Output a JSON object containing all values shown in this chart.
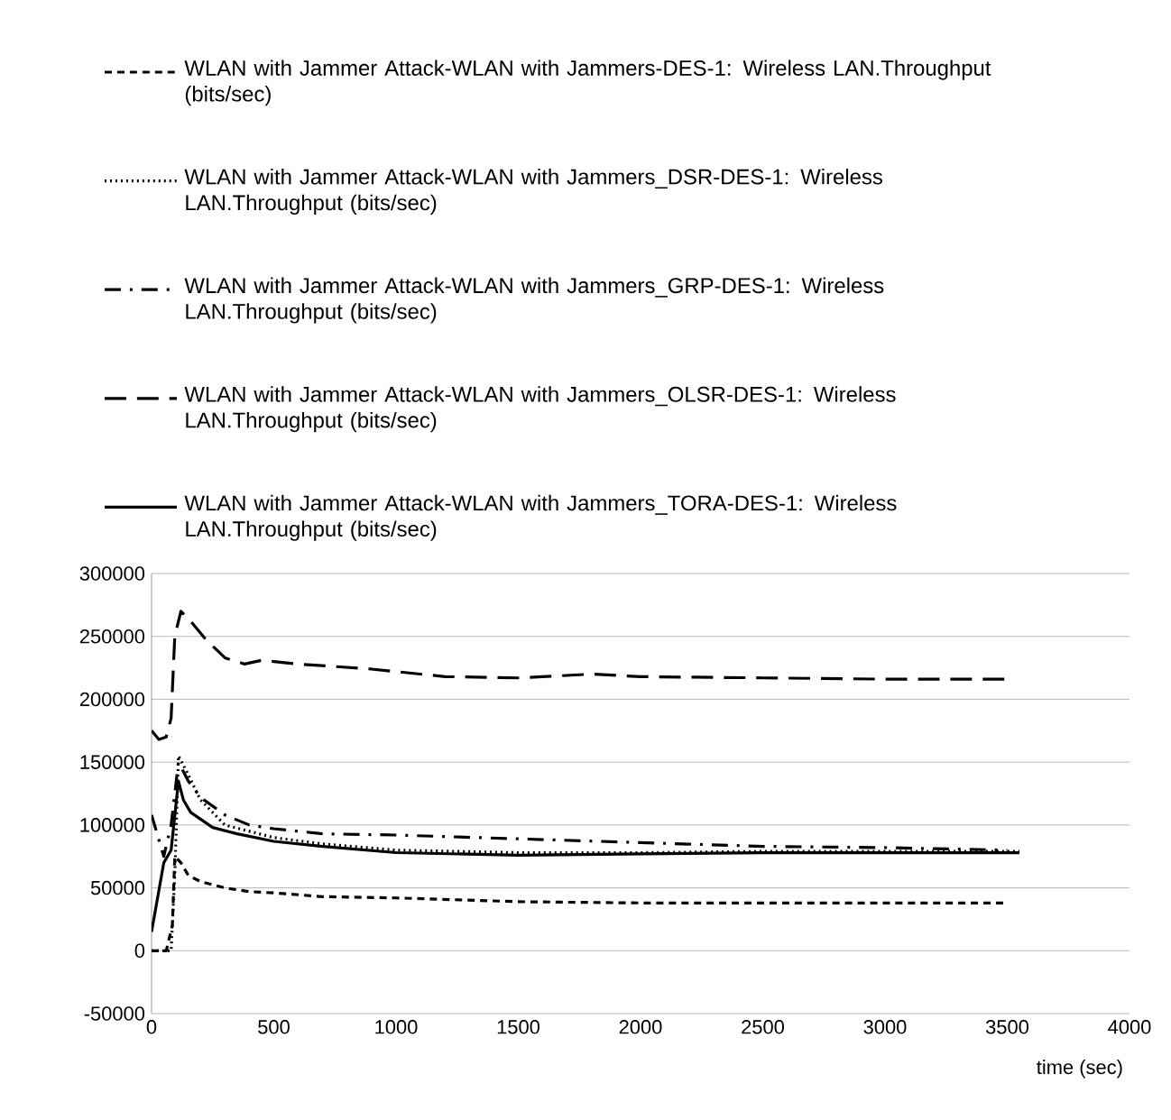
{
  "chart_data": {
    "type": "line",
    "xlabel": "time (sec)",
    "xlim": [
      0,
      4000
    ],
    "xticks": [
      0,
      500,
      1000,
      1500,
      2000,
      2500,
      3000,
      3500,
      4000
    ],
    "ylim": [
      -50000,
      300000
    ],
    "yticks": [
      -50000,
      0,
      50000,
      100000,
      150000,
      200000,
      250000,
      300000
    ],
    "grid": "y",
    "legend": "top",
    "series": [
      {
        "name": "WLAN with Jammer Attack-WLAN with Jammers-DES-1: Wireless LAN.Throughput (bits/sec)",
        "color": "#000000",
        "line_style": "dashed",
        "x": [
          0,
          60,
          85,
          95,
          120,
          150,
          200,
          300,
          400,
          500,
          700,
          1000,
          1500,
          2000,
          2500,
          3000,
          3500
        ],
        "values": [
          0,
          0,
          20000,
          75000,
          70000,
          60000,
          55000,
          50000,
          47000,
          46000,
          43000,
          42000,
          39000,
          38000,
          38000,
          38000,
          38000
        ]
      },
      {
        "name": "WLAN with Jammer Attack-WLAN with Jammers_DSR-DES-1: Wireless LAN.Throughput (bits/sec)",
        "color": "#000000",
        "line_style": "dotted",
        "x": [
          0,
          80,
          95,
          110,
          150,
          200,
          300,
          500,
          700,
          1000,
          1500,
          2000,
          2500,
          3000,
          3500,
          3550
        ],
        "values": [
          0,
          0,
          60000,
          155000,
          140000,
          120000,
          100000,
          90000,
          85000,
          80000,
          78000,
          78000,
          79000,
          79000,
          79000,
          79000
        ]
      },
      {
        "name": "WLAN with Jammer Attack-WLAN with Jammers_GRP-DES-1: Wireless LAN.Throughput (bits/sec)",
        "color": "#000000",
        "line_style": "dashdot",
        "x": [
          0,
          50,
          80,
          110,
          150,
          200,
          300,
          400,
          500,
          700,
          1000,
          1500,
          2000,
          2500,
          3000,
          3500
        ],
        "values": [
          108000,
          75000,
          100000,
          150000,
          135000,
          122000,
          108000,
          100000,
          97000,
          93000,
          92000,
          89000,
          86000,
          83000,
          82000,
          80000
        ]
      },
      {
        "name": "WLAN with Jammer Attack-WLAN with Jammers_OLSR-DES-1: Wireless LAN.Throughput (bits/sec)",
        "color": "#000000",
        "line_style": "longdash",
        "x": [
          0,
          30,
          60,
          80,
          95,
          120,
          160,
          220,
          300,
          380,
          450,
          600,
          900,
          1200,
          1500,
          1800,
          2000,
          2500,
          3000,
          3500
        ],
        "values": [
          175000,
          168000,
          170000,
          185000,
          250000,
          270000,
          262000,
          248000,
          233000,
          228000,
          231000,
          228000,
          224000,
          218000,
          217000,
          220000,
          218000,
          217000,
          216000,
          216000
        ]
      },
      {
        "name": "WLAN with Jammer Attack-WLAN with Jammers_TORA-DES-1: Wireless LAN.Throughput (bits/sec)",
        "color": "#000000",
        "line_style": "solid",
        "x": [
          0,
          50,
          80,
          110,
          130,
          160,
          250,
          350,
          500,
          700,
          1000,
          1500,
          2000,
          2500,
          3000,
          3550
        ],
        "values": [
          15000,
          70000,
          80000,
          135000,
          120000,
          110000,
          98000,
          93000,
          87000,
          83000,
          78000,
          76000,
          77000,
          78000,
          78000,
          78000
        ]
      }
    ]
  }
}
